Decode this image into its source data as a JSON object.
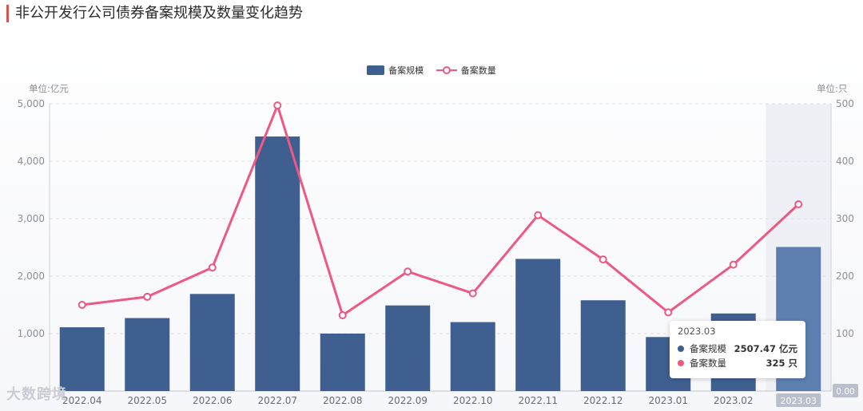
{
  "title": "非公开发行公司债券备案规模及数量变化趋势",
  "watermark": "大数跨境",
  "chart_data": {
    "type": "bar",
    "categories": [
      "2022.04",
      "2022.05",
      "2022.06",
      "2022.07",
      "2022.08",
      "2022.09",
      "2022.10",
      "2022.11",
      "2022.12",
      "2023.01",
      "2023.02",
      "2023.03"
    ],
    "series": [
      {
        "name": "备案规模",
        "type": "bar",
        "axis": "left",
        "values": [
          1110,
          1270,
          1690,
          4430,
          1000,
          1490,
          1200,
          2300,
          1580,
          940,
          1350,
          2507.47
        ]
      },
      {
        "name": "备案数量",
        "type": "line",
        "axis": "right",
        "values": [
          150,
          164,
          215,
          497,
          132,
          208,
          170,
          306,
          229,
          137,
          220,
          325
        ]
      }
    ],
    "left_axis": {
      "unit_label": "单位:亿元",
      "ylim": [
        0,
        5000
      ],
      "ticks": [
        "1,000",
        "2,000",
        "3,000",
        "4,000",
        "5,000"
      ]
    },
    "right_axis": {
      "unit_label": "单位:只",
      "ylim": [
        0,
        500
      ],
      "ticks": [
        "100",
        "200",
        "300",
        "400",
        "500"
      ]
    },
    "right_axis_pointer_label": "0.00",
    "grid": true,
    "legend_position": "top-center",
    "highlight_category": "2023.03",
    "colors": {
      "bar": "#3e5f8f",
      "bar_highlight": "#5d7fb0",
      "line": "#ee5882",
      "highlight_band": "#eef0f5"
    }
  },
  "tooltip": {
    "title": "2023.03",
    "rows": [
      {
        "name": "备案规模",
        "value": "2507.47",
        "unit": "亿元",
        "color": "#3e5f8f"
      },
      {
        "name": "备案数量",
        "value": "325",
        "unit": "只",
        "color": "#ee5882"
      }
    ]
  }
}
